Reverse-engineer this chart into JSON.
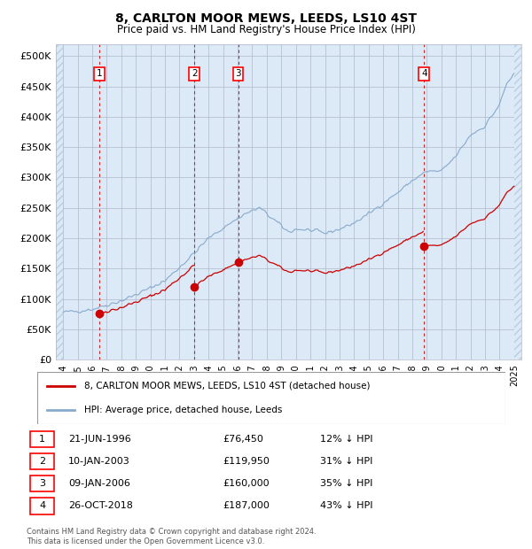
{
  "title": "8, CARLTON MOOR MEWS, LEEDS, LS10 4ST",
  "subtitle": "Price paid vs. HM Land Registry's House Price Index (HPI)",
  "xlim": [
    1993.5,
    2025.5
  ],
  "ylim": [
    0,
    520000
  ],
  "yticks": [
    0,
    50000,
    100000,
    150000,
    200000,
    250000,
    300000,
    350000,
    400000,
    450000,
    500000
  ],
  "ytick_labels": [
    "£0",
    "£50K",
    "£100K",
    "£150K",
    "£200K",
    "£250K",
    "£300K",
    "£350K",
    "£400K",
    "£450K",
    "£500K"
  ],
  "xticks": [
    1994,
    1995,
    1996,
    1997,
    1998,
    1999,
    2000,
    2001,
    2002,
    2003,
    2004,
    2005,
    2006,
    2007,
    2008,
    2009,
    2010,
    2011,
    2012,
    2013,
    2014,
    2015,
    2016,
    2017,
    2018,
    2019,
    2020,
    2021,
    2022,
    2023,
    2024,
    2025
  ],
  "background_color": "#dce9f7",
  "hatch_color": "#b8cfe0",
  "grid_color": "#b0b8c8",
  "sale_color": "#cc0000",
  "hpi_color": "#88aacc",
  "sale_dates": [
    1996.47,
    2003.03,
    2006.03,
    2018.82
  ],
  "sale_prices": [
    76450,
    119950,
    160000,
    187000
  ],
  "sale_labels": [
    "1",
    "2",
    "3",
    "4"
  ],
  "legend_label_red": "8, CARLTON MOOR MEWS, LEEDS, LS10 4ST (detached house)",
  "legend_label_blue": "HPI: Average price, detached house, Leeds",
  "table_data": [
    {
      "num": "1",
      "date": "21-JUN-1996",
      "price": "£76,450",
      "pct": "12% ↓ HPI"
    },
    {
      "num": "2",
      "date": "10-JAN-2003",
      "price": "£119,950",
      "pct": "31% ↓ HPI"
    },
    {
      "num": "3",
      "date": "09-JAN-2006",
      "price": "£160,000",
      "pct": "35% ↓ HPI"
    },
    {
      "num": "4",
      "date": "26-OCT-2018",
      "price": "£187,000",
      "pct": "43% ↓ HPI"
    }
  ],
  "footnote": "Contains HM Land Registry data © Crown copyright and database right 2024.\nThis data is licensed under the Open Government Licence v3.0."
}
